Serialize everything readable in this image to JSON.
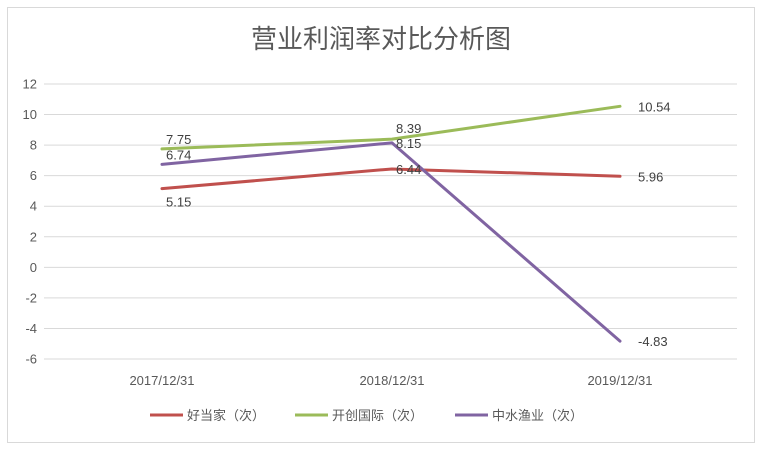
{
  "chart_data": {
    "type": "line",
    "title": "营业利润率对比分析图",
    "categories": [
      "2017/12/31",
      "2018/12/31",
      "2019/12/31"
    ],
    "ylim": [
      -6,
      12
    ],
    "yticks": [
      "12",
      "10",
      "8",
      "6",
      "4",
      "2",
      "0",
      "-2",
      "-4",
      "-6"
    ],
    "grid": true,
    "legend_position": "bottom",
    "series": [
      {
        "name": "好当家（次）",
        "color": "#c0504d",
        "values": [
          5.15,
          6.44,
          5.96
        ],
        "labels": [
          "5.15",
          "6.44",
          "5.96"
        ]
      },
      {
        "name": "开创国际（次）",
        "color": "#9bbb59",
        "values": [
          7.75,
          8.39,
          10.54
        ],
        "labels": [
          "7.75",
          "8.39",
          "10.54"
        ]
      },
      {
        "name": "中水渔业（次）",
        "color": "#8064a2",
        "values": [
          6.74,
          8.15,
          -4.83
        ],
        "labels": [
          "6.74",
          "8.15",
          "-4.83"
        ]
      }
    ]
  }
}
